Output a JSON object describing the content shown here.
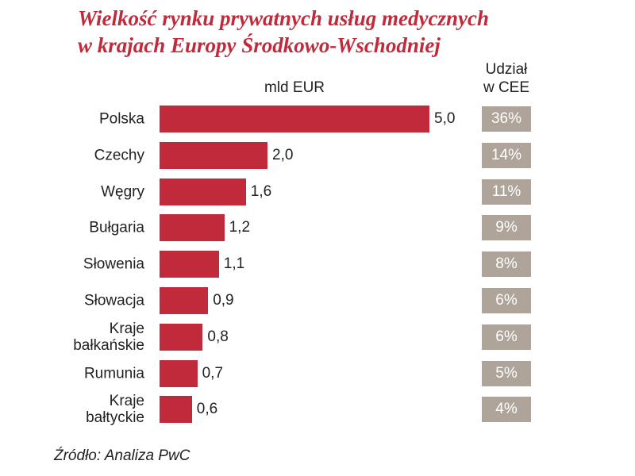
{
  "chart_data": {
    "type": "bar",
    "orientation": "horizontal",
    "title": "Wielkość rynku prywatnych usług medycznych\nw krajach Europy Środkowo-Wschodniej",
    "value_axis_label": "mld EUR",
    "categories": [
      "Polska",
      "Czechy",
      "Węgry",
      "Bułgaria",
      "Słowenia",
      "Słowacja",
      "Kraje\nbałkańskie",
      "Rumunia",
      "Kraje\nbałtyckie"
    ],
    "values": [
      5.0,
      2.0,
      1.6,
      1.2,
      1.1,
      0.9,
      0.8,
      0.7,
      0.6
    ],
    "value_labels": [
      "5,0",
      "2,0",
      "1,6",
      "1,2",
      "1,1",
      "0,9",
      "0,8",
      "0,7",
      "0,6"
    ],
    "color": "#c02a3b",
    "shares": {
      "name": "Udział\nw CEE",
      "color": "#afa49a",
      "values": [
        36,
        14,
        11,
        9,
        8,
        6,
        6,
        5,
        4
      ],
      "value_labels": [
        "36%",
        "14%",
        "11%",
        "9%",
        "8%",
        "6%",
        "6%",
        "5%",
        "4%"
      ]
    },
    "source": "Źródło: Analiza PwC"
  }
}
